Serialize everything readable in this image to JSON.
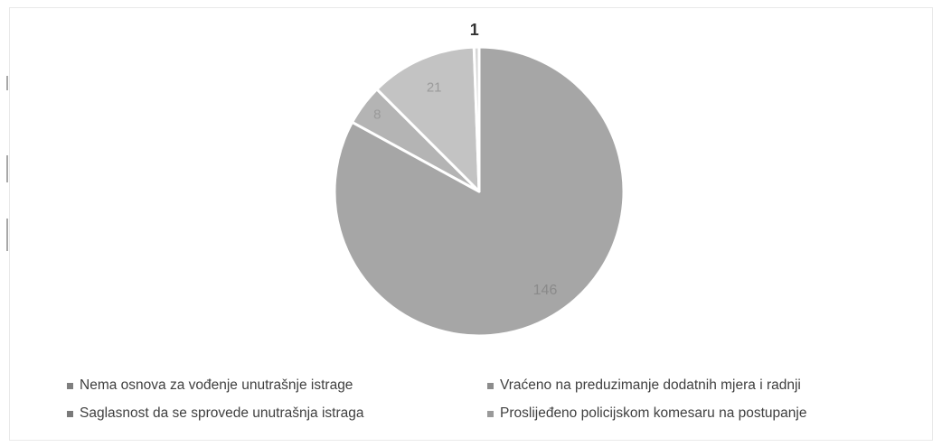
{
  "chart_data": {
    "type": "pie",
    "categories": [
      "Nema osnova za vođenje unutrašnje istrage",
      "Saglasnost da se sprovede unutrašnja istraga",
      "Vraćeno na preduzimanje dodatnih mjera i radnji",
      "Proslijeđeno policijskom komesaru na postupanje"
    ],
    "values": [
      146,
      8,
      21,
      1
    ],
    "data_labels": [
      "146",
      "8",
      "21",
      "1"
    ],
    "colors": [
      "#a6a6a6",
      "#b4b4b4",
      "#c3c3c3",
      "#d6d6d6"
    ],
    "title": "",
    "legend_position": "bottom"
  },
  "legend": [
    {
      "label": "Nema osnova za vođenje unutrašnje istrage",
      "color": "#7f7f7f"
    },
    {
      "label": "Vraćeno na preduzimanje dodatnih mjera i radnji",
      "color": "#8c8c8c"
    },
    {
      "label": "Saglasnost da se sprovede unutrašnja istraga",
      "color": "#7a7a7a"
    },
    {
      "label": "Proslijeđeno policijskom komesaru na postupanje",
      "color": "#9a9a9a"
    }
  ]
}
